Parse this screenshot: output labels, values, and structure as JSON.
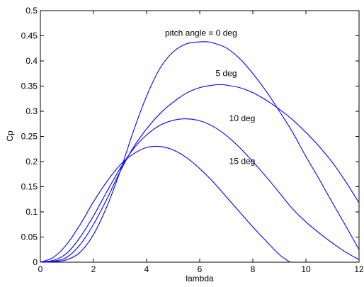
{
  "chart_data": {
    "type": "line",
    "title": "",
    "xlabel": "lambda",
    "ylabel": "Cp",
    "xlim": [
      0,
      12
    ],
    "ylim": [
      0,
      0.5
    ],
    "xticks": [
      0,
      2,
      4,
      6,
      8,
      10,
      12
    ],
    "yticks": [
      0,
      0.05,
      0.1,
      0.15,
      0.2,
      0.25,
      0.3,
      0.35,
      0.4,
      0.45,
      0.5
    ],
    "ytick_labels": [
      "0",
      "0.05",
      "0.1",
      "0.15",
      "0.2",
      "0.25",
      "0.3",
      "0.35",
      "0.4",
      "0.45",
      "0.5"
    ],
    "grid": false,
    "line_color": "#0000ff",
    "series": [
      {
        "x": [
          0,
          0.5,
          1,
          1.5,
          2,
          2.5,
          3,
          3.5,
          4,
          4.5,
          5,
          5.5,
          6,
          6.3,
          6.5,
          7,
          7.5,
          8,
          8.5,
          9,
          9.5,
          10,
          10.5,
          11,
          11.5,
          12
        ],
        "values": [
          0,
          0.001,
          0.005,
          0.02,
          0.055,
          0.11,
          0.18,
          0.26,
          0.33,
          0.385,
          0.418,
          0.434,
          0.438,
          0.438,
          0.436,
          0.426,
          0.405,
          0.375,
          0.34,
          0.3,
          0.258,
          0.21,
          0.165,
          0.118,
          0.072,
          0.025
        ],
        "annotation": "pitch angle = 0 deg",
        "annotation_at": [
          6.05,
          0.45
        ]
      },
      {
        "x": [
          0,
          0.5,
          1,
          1.5,
          2,
          2.5,
          3,
          3.5,
          4,
          4.5,
          5,
          5.5,
          6,
          6.5,
          6.8,
          7,
          7.5,
          8,
          8.5,
          9,
          9.5,
          10,
          10.5,
          11,
          11.5,
          12
        ],
        "values": [
          0,
          0.002,
          0.01,
          0.035,
          0.075,
          0.125,
          0.18,
          0.228,
          0.265,
          0.295,
          0.318,
          0.336,
          0.347,
          0.352,
          0.353,
          0.352,
          0.347,
          0.337,
          0.322,
          0.304,
          0.283,
          0.258,
          0.23,
          0.198,
          0.16,
          0.118
        ],
        "annotation": "5 deg",
        "annotation_at": [
          7.0,
          0.37
        ]
      },
      {
        "x": [
          0,
          0.5,
          1,
          1.5,
          2,
          2.5,
          3,
          3.5,
          4,
          4.5,
          5,
          5.5,
          6,
          6.5,
          7,
          7.5,
          8,
          8.5,
          9,
          9.5,
          10,
          10.5,
          11,
          11.5,
          12
        ],
        "values": [
          0,
          0.004,
          0.018,
          0.05,
          0.092,
          0.14,
          0.186,
          0.225,
          0.253,
          0.272,
          0.282,
          0.285,
          0.281,
          0.27,
          0.252,
          0.228,
          0.2,
          0.17,
          0.138,
          0.106,
          0.08,
          0.058,
          0.038,
          0.02,
          0.005
        ],
        "annotation": "10 deg",
        "annotation_at": [
          7.6,
          0.28
        ]
      },
      {
        "x": [
          0,
          0.5,
          1,
          1.5,
          2,
          2.5,
          3,
          3.5,
          4,
          4.5,
          5,
          5.5,
          6,
          6.5,
          7,
          7.5,
          8,
          8.5,
          9,
          9.4
        ],
        "values": [
          0,
          0.01,
          0.036,
          0.075,
          0.12,
          0.16,
          0.193,
          0.215,
          0.228,
          0.23,
          0.223,
          0.208,
          0.186,
          0.16,
          0.13,
          0.1,
          0.07,
          0.042,
          0.015,
          0
        ],
        "annotation": "15 deg",
        "annotation_at": [
          7.6,
          0.195
        ]
      }
    ]
  }
}
